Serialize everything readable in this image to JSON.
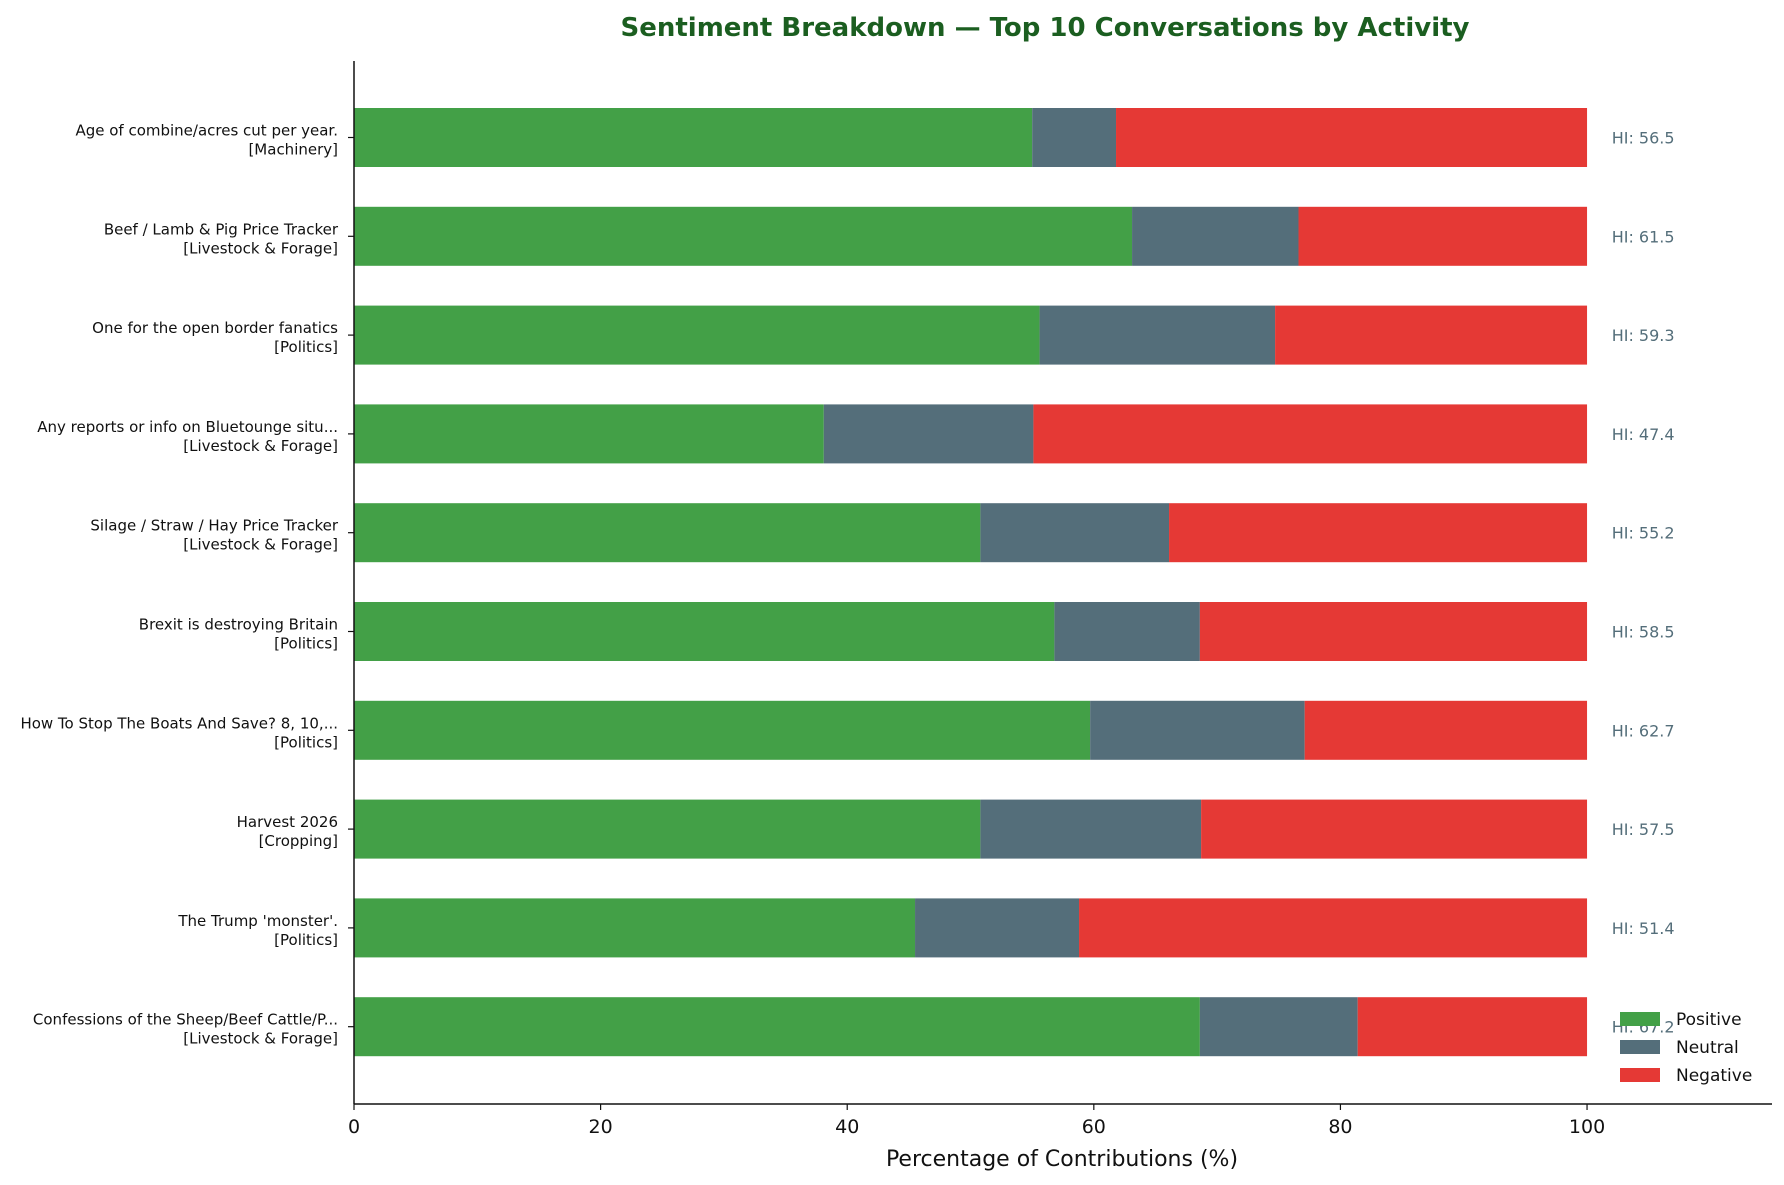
{
  "colors": {
    "positive": "#43a047",
    "neutral": "#546e7a",
    "negative": "#e53935",
    "title": "#1b5e20",
    "hi_text": "#546e7a",
    "axis": "#111111"
  },
  "chart_data": {
    "type": "bar",
    "orientation": "horizontal",
    "stacked": true,
    "title": "Sentiment Breakdown — Top 10 Conversations by Activity",
    "xlabel": "Percentage of Contributions (%)",
    "ylabel": "",
    "xlim": [
      0,
      115
    ],
    "xticks": [
      "0",
      "20",
      "40",
      "60",
      "80",
      "100"
    ],
    "grid": false,
    "legend_position": "bottom-right",
    "categories": [
      {
        "title": "Age of combine/acres cut per year.",
        "category": "[Machinery]"
      },
      {
        "title": "Beef / Lamb & Pig Price Tracker",
        "category": "[Livestock & Forage]"
      },
      {
        "title": "One for the open border fanatics",
        "category": "[Politics]"
      },
      {
        "title": "Any reports or info on Bluetounge situ...",
        "category": "[Livestock & Forage]"
      },
      {
        "title": "Silage / Straw / Hay Price Tracker",
        "category": "[Livestock & Forage]"
      },
      {
        "title": "Brexit is destroying Britain",
        "category": "[Politics]"
      },
      {
        "title": "How To Stop The Boats And Save? 8, 10,...",
        "category": "[Politics]"
      },
      {
        "title": "Harvest 2026",
        "category": "[Cropping]"
      },
      {
        "title": "The Trump 'monster'.",
        "category": "[Politics]"
      },
      {
        "title": "Confessions of the Sheep/Beef Cattle/P...",
        "category": "[Livestock & Forage]"
      }
    ],
    "series": [
      {
        "name": "Positive",
        "values": [
          55.0,
          63.1,
          55.6,
          38.1,
          50.8,
          56.8,
          59.7,
          50.8,
          45.5,
          68.6
        ]
      },
      {
        "name": "Neutral",
        "values": [
          6.8,
          13.5,
          19.1,
          17.0,
          15.3,
          11.8,
          17.4,
          17.9,
          13.3,
          12.8
        ]
      },
      {
        "name": "Negative",
        "values": [
          38.2,
          23.4,
          25.3,
          44.9,
          33.9,
          31.4,
          22.9,
          31.3,
          41.2,
          18.6
        ]
      }
    ],
    "annotations": [
      "HI: 56.5",
      "HI: 61.5",
      "HI: 59.3",
      "HI: 47.4",
      "HI: 55.2",
      "HI: 58.5",
      "HI: 62.7",
      "HI: 57.5",
      "HI: 51.4",
      "HI: 67.2"
    ]
  }
}
